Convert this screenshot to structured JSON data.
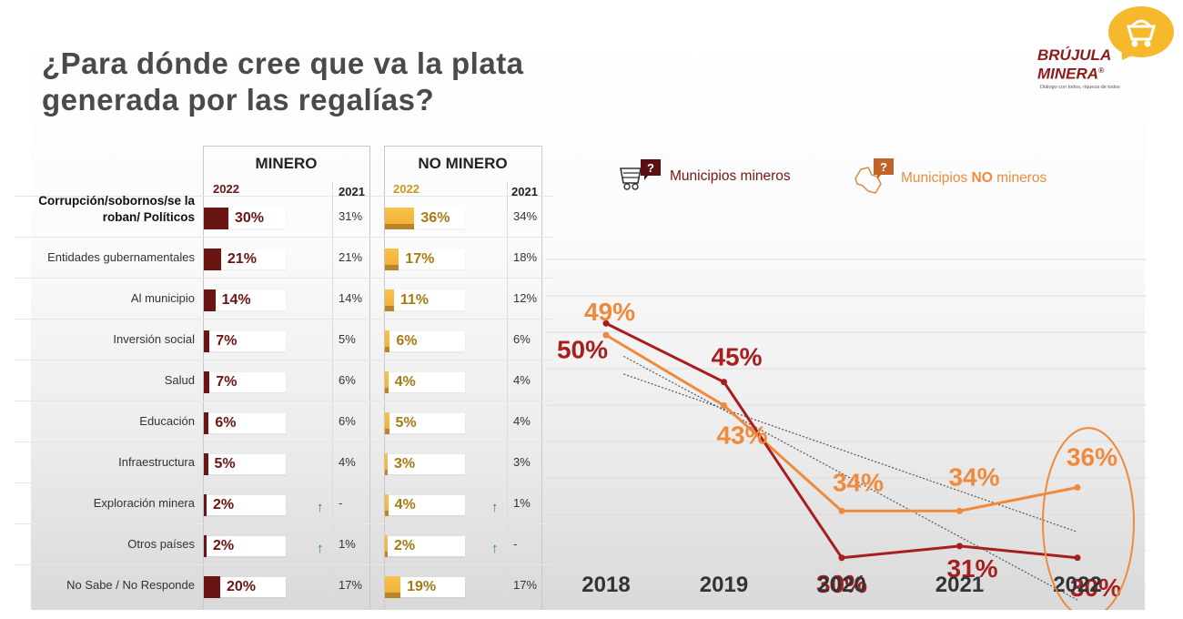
{
  "title": {
    "line1": "¿Para dónde cree que va la plata",
    "line2": "generada por las regalías?"
  },
  "logo": {
    "line1": "BRÚJULA",
    "line2": "MINERA",
    "mark": "®",
    "tagline": "Diálogo con todos, riqueza de todos"
  },
  "tables": {
    "minero": {
      "header": "MINERO",
      "year_current": "2022",
      "year_prev": "2021",
      "color": "#6b1414"
    },
    "no_minero": {
      "header": "NO MINERO",
      "year_current": "2022",
      "year_prev": "2021",
      "color": "#f3b23a"
    }
  },
  "rows": [
    {
      "category": "Corrupción/sobornos/se la roban/ Políticos",
      "minero_2022": "30%",
      "minero_2022_value": 30,
      "minero_2021": "31%",
      "minero_up": "",
      "no_minero_2022": "36%",
      "no_minero_2022_value": 36,
      "no_minero_2021": "34%",
      "no_minero_up": ""
    },
    {
      "category": "Entidades gubernamentales",
      "minero_2022": "21%",
      "minero_2022_value": 21,
      "minero_2021": "21%",
      "minero_up": "",
      "no_minero_2022": "17%",
      "no_minero_2022_value": 17,
      "no_minero_2021": "18%",
      "no_minero_up": ""
    },
    {
      "category": "Al municipio",
      "minero_2022": "14%",
      "minero_2022_value": 14,
      "minero_2021": "14%",
      "minero_up": "",
      "no_minero_2022": "11%",
      "no_minero_2022_value": 11,
      "no_minero_2021": "12%",
      "no_minero_up": ""
    },
    {
      "category": "Inversión social",
      "minero_2022": "7%",
      "minero_2022_value": 7,
      "minero_2021": "5%",
      "minero_up": "",
      "no_minero_2022": "6%",
      "no_minero_2022_value": 6,
      "no_minero_2021": "6%",
      "no_minero_up": ""
    },
    {
      "category": "Salud",
      "minero_2022": "7%",
      "minero_2022_value": 7,
      "minero_2021": "6%",
      "minero_up": "",
      "no_minero_2022": "4%",
      "no_minero_2022_value": 4,
      "no_minero_2021": "4%",
      "no_minero_up": ""
    },
    {
      "category": "Educación",
      "minero_2022": "6%",
      "minero_2022_value": 6,
      "minero_2021": "6%",
      "minero_up": "",
      "no_minero_2022": "5%",
      "no_minero_2022_value": 5,
      "no_minero_2021": "4%",
      "no_minero_up": ""
    },
    {
      "category": "Infraestructura",
      "minero_2022": "5%",
      "minero_2022_value": 5,
      "minero_2021": "4%",
      "minero_up": "",
      "no_minero_2022": "3%",
      "no_minero_2022_value": 3,
      "no_minero_2021": "3%",
      "no_minero_up": ""
    },
    {
      "category": "Exploración minera",
      "minero_2022": "2%",
      "minero_2022_value": 2,
      "minero_2021": "-",
      "minero_up": "↑",
      "no_minero_2022": "4%",
      "no_minero_2022_value": 4,
      "no_minero_2021": "1%",
      "no_minero_up": "↑"
    },
    {
      "category": "Otros países",
      "minero_2022": "2%",
      "minero_2022_value": 2,
      "minero_2021": "1%",
      "minero_up": "↑",
      "no_minero_2022": "2%",
      "no_minero_2022_value": 2,
      "no_minero_2021": "-",
      "no_minero_up": "↑"
    },
    {
      "category": "No Sabe / No Responde",
      "minero_2022": "20%",
      "minero_2022_value": 20,
      "minero_2021": "17%",
      "minero_up": "",
      "no_minero_2022": "19%",
      "no_minero_2022_value": 19,
      "no_minero_2021": "17%",
      "no_minero_up": ""
    }
  ],
  "chart_data": {
    "type": "line",
    "title": "",
    "x": [
      "2018",
      "2019",
      "2020",
      "2021",
      "2022"
    ],
    "series": [
      {
        "name": "Municipios mineros",
        "values": [
          50,
          45,
          30,
          31,
          30
        ],
        "labels": [
          "50%",
          "45%",
          "30%",
          "31%",
          "30%"
        ],
        "color": "#a61e1e"
      },
      {
        "name": "Municipios NO mineros",
        "values": [
          49,
          43,
          34,
          34,
          36
        ],
        "labels": [
          "49%",
          "43%",
          "34%",
          "34%",
          "36%"
        ],
        "color": "#ef8a3c"
      }
    ],
    "trendlines": true,
    "highlight": "2022",
    "ylim": [
      24,
      56
    ],
    "legend": {
      "minero": "Municipios mineros",
      "no_minero_prefix": "Municipios ",
      "no_minero_bold": "NO",
      "no_minero_suffix": " mineros",
      "position": "top"
    }
  },
  "icons": {
    "minero": "mine-cart-question-icon",
    "no_minero": "colombia-map-question-icon"
  }
}
